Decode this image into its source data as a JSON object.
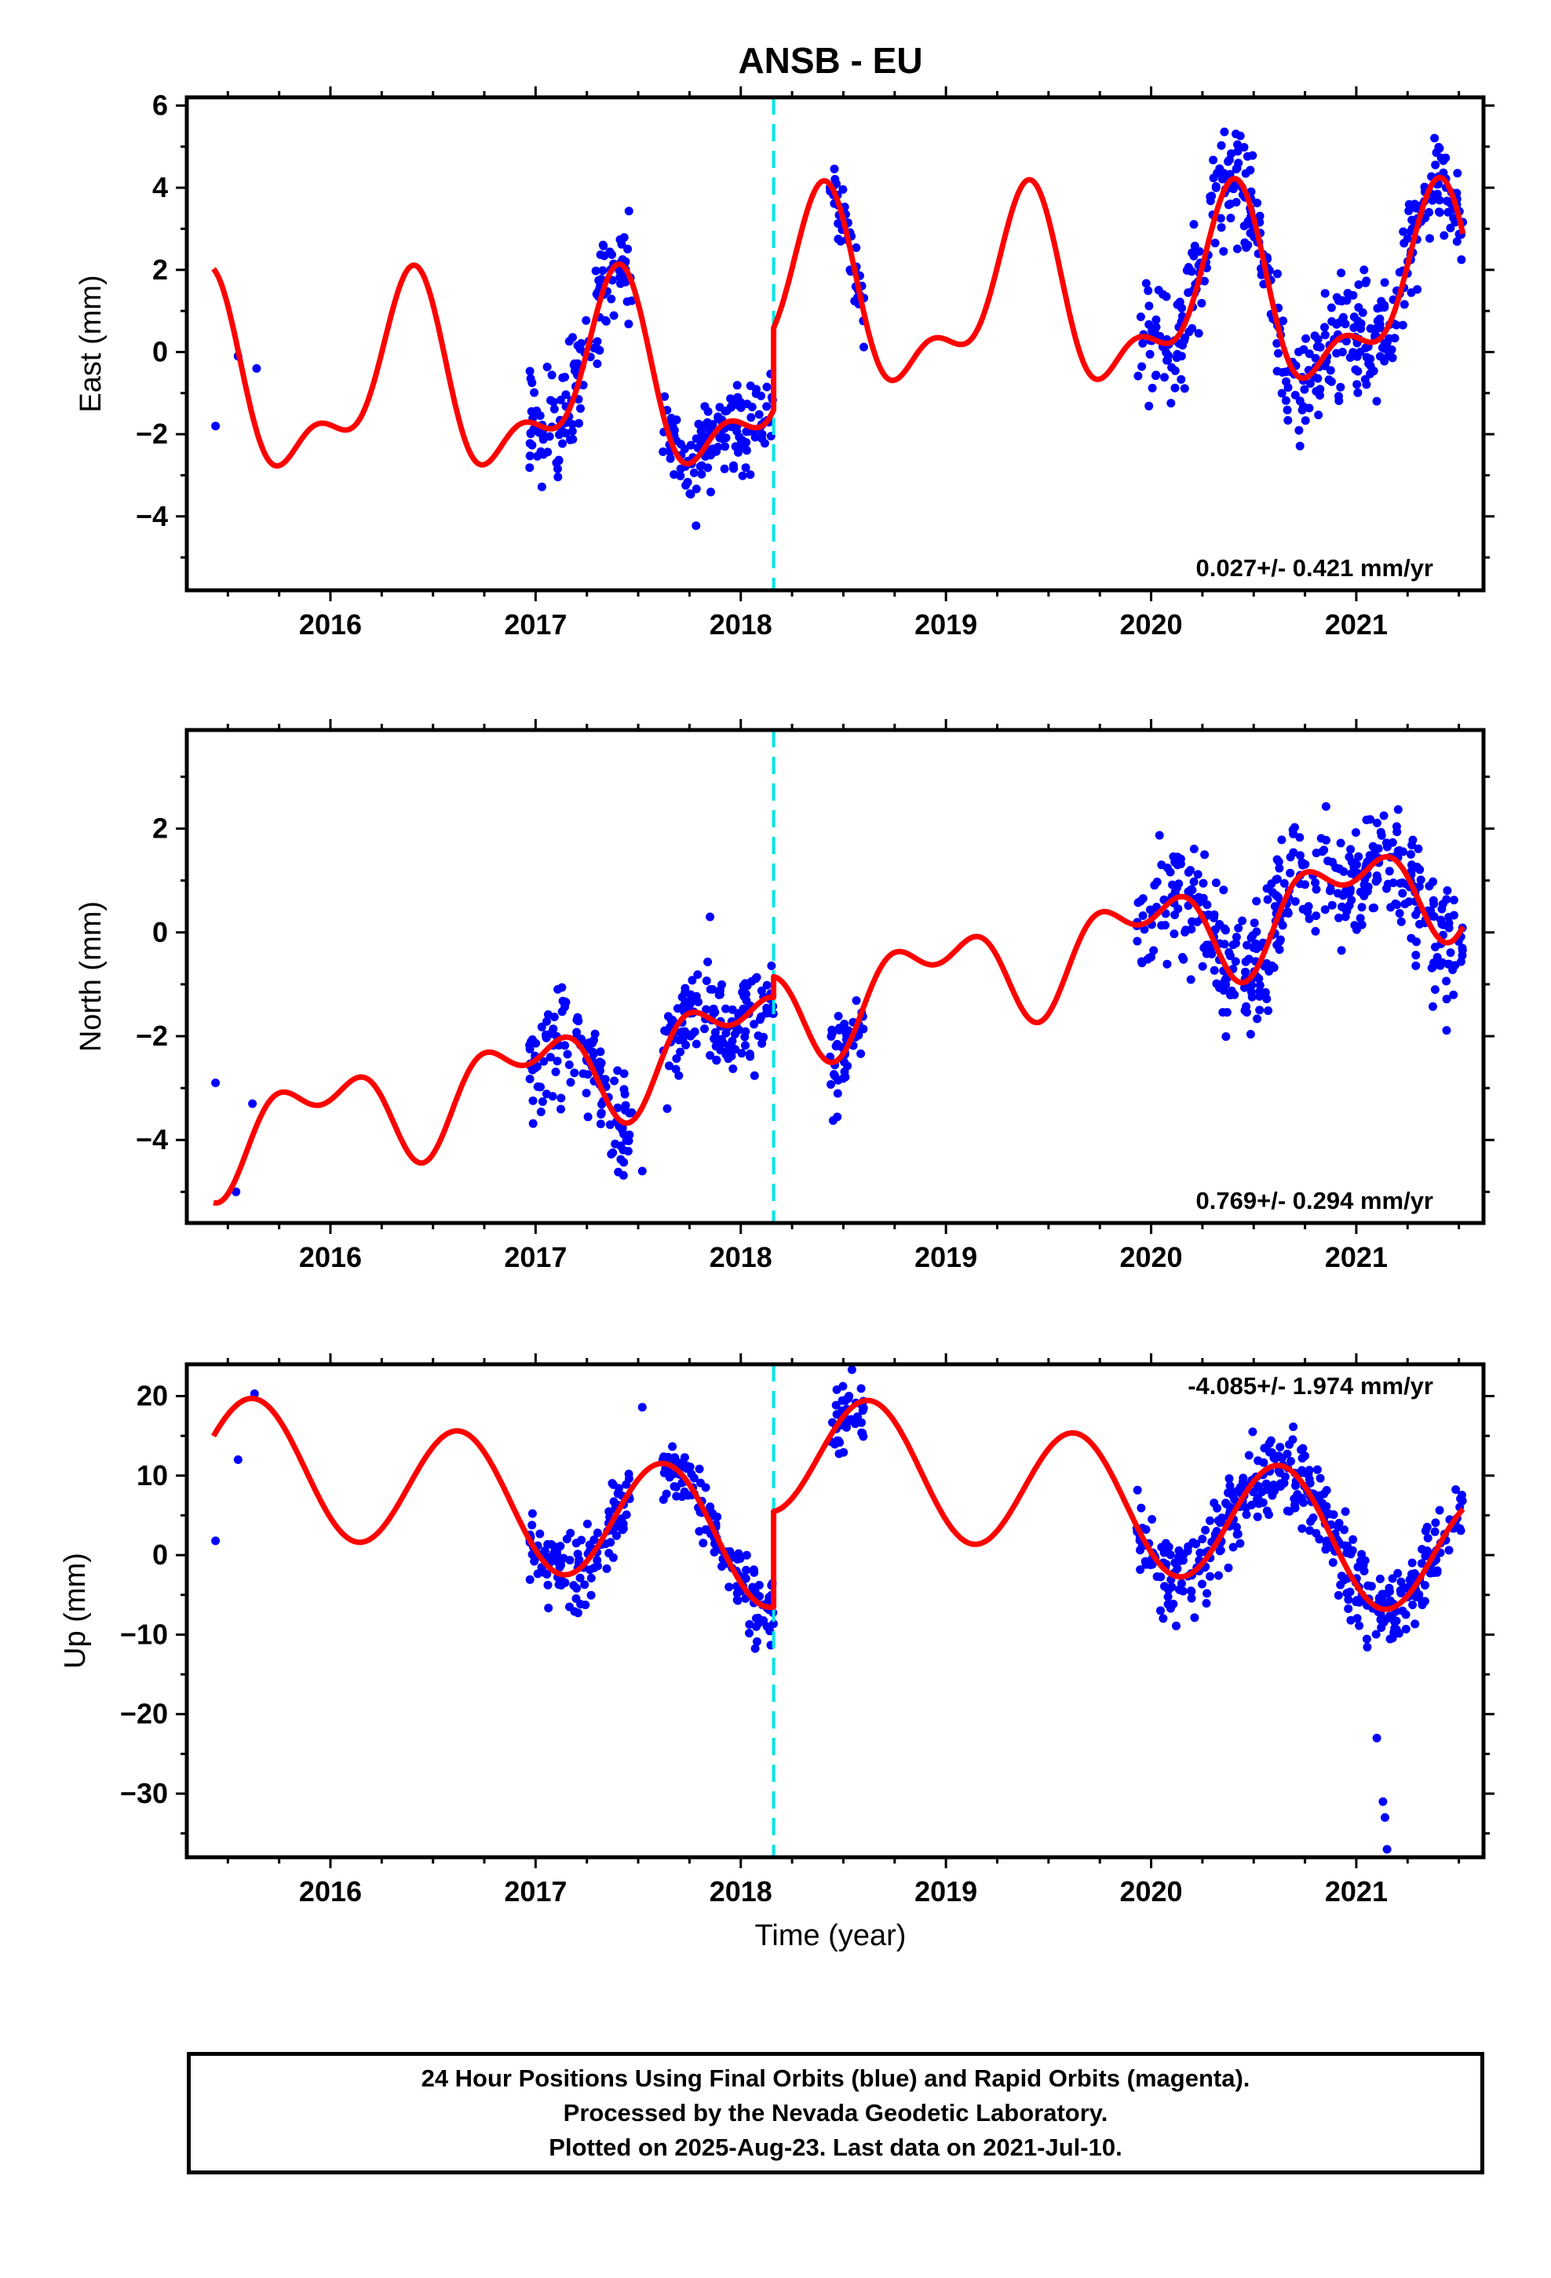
{
  "title": "ANSB - EU",
  "xlabel": "Time (year)",
  "colors": {
    "data": "#0000ff",
    "model": "#ff0000",
    "offset": "#00e5e5",
    "axis": "#000000"
  },
  "footer": {
    "line1": "24 Hour Positions Using Final Orbits (blue) and Rapid Orbits (magenta).",
    "line2": "Processed by the Nevada Geodetic Laboratory.",
    "line3": "Plotted on 2025-Aug-23. Last data on 2021-Jul-10."
  },
  "chart_data": [
    {
      "type": "scatter",
      "ylabel": "East (mm)",
      "xlim": [
        2015.3,
        2021.62
      ],
      "ylim": [
        -5.8,
        6.2
      ],
      "xticks": [
        2016,
        2017,
        2018,
        2019,
        2020,
        2021
      ],
      "yticks": [
        -4,
        -2,
        0,
        2,
        4,
        6
      ],
      "rate_label": "0.027+/- 0.421 mm/yr",
      "rate_position": "bottom-right",
      "offset_year": 2018.16,
      "model": {
        "segments": [
          {
            "x0": 2015.43,
            "x1": 2018.16,
            "offset": -0.8,
            "slope": 0.027,
            "amp1": 2.0,
            "phase1": 2016.38,
            "amp2": 1.0,
            "phase2": 2016.42,
            "t0": 2018.0
          },
          {
            "x0": 2018.16,
            "x1": 2021.52,
            "offset": 1.2,
            "slope": 0.027,
            "amp1": 2.0,
            "phase1": 2016.38,
            "amp2": 1.0,
            "phase2": 2016.42,
            "t0": 2018.0
          }
        ]
      },
      "observations": {
        "points": [
          [
            2015.44,
            -1.8
          ],
          [
            2015.55,
            -0.1
          ],
          [
            2015.64,
            -0.4
          ]
        ],
        "clusters": [
          {
            "x0": 2016.97,
            "x1": 2017.47,
            "spread": 1.2
          },
          {
            "x0": 2017.62,
            "x1": 2017.92,
            "spread": 0.9
          },
          {
            "x0": 2017.92,
            "x1": 2018.16,
            "spread": 1.1
          },
          {
            "x0": 2018.43,
            "x1": 2018.6,
            "spread": 0.8
          },
          {
            "x0": 2019.93,
            "x1": 2020.5,
            "spread": 1.3
          },
          {
            "x0": 2020.5,
            "x1": 2021.1,
            "spread": 1.1
          },
          {
            "x0": 2021.1,
            "x1": 2021.52,
            "spread": 1.1
          }
        ]
      }
    },
    {
      "type": "scatter",
      "ylabel": "North (mm)",
      "xlim": [
        2015.3,
        2021.62
      ],
      "ylim": [
        -5.6,
        3.9
      ],
      "xticks": [
        2016,
        2017,
        2018,
        2019,
        2020,
        2021
      ],
      "yticks": [
        -4,
        -2,
        0,
        2
      ],
      "rate_label": "0.769+/- 0.294 mm/yr",
      "rate_position": "bottom-right",
      "offset_year": 2018.16,
      "model": {
        "segments": [
          {
            "x0": 2015.43,
            "x1": 2018.16,
            "offset": -2.0,
            "slope": 0.769,
            "amp1": 0.75,
            "phase1": 2015.95,
            "amp2": 0.5,
            "phase2": 2016.2,
            "t0": 2018.0
          },
          {
            "x0": 2018.16,
            "x1": 2021.52,
            "offset": -1.6,
            "slope": 0.769,
            "amp1": 0.75,
            "phase1": 2015.95,
            "amp2": 0.5,
            "phase2": 2016.2,
            "t0": 2018.0
          }
        ]
      },
      "observations": {
        "points": [
          [
            2015.44,
            -2.9
          ],
          [
            2015.54,
            -5.0
          ],
          [
            2015.62,
            -3.3
          ],
          [
            2017.52,
            -4.6
          ],
          [
            2017.85,
            0.3
          ]
        ],
        "clusters": [
          {
            "x0": 2016.97,
            "x1": 2017.47,
            "spread": 0.9
          },
          {
            "x0": 2017.62,
            "x1": 2017.92,
            "spread": 0.8
          },
          {
            "x0": 2017.92,
            "x1": 2018.16,
            "spread": 0.7
          },
          {
            "x0": 2018.43,
            "x1": 2018.6,
            "spread": 0.7
          },
          {
            "x0": 2019.93,
            "x1": 2020.5,
            "spread": 1.0
          },
          {
            "x0": 2020.5,
            "x1": 2021.1,
            "spread": 1.0
          },
          {
            "x0": 2021.1,
            "x1": 2021.52,
            "spread": 1.1
          }
        ]
      }
    },
    {
      "type": "scatter",
      "ylabel": "Up (mm)",
      "xlim": [
        2015.3,
        2021.62
      ],
      "ylim": [
        -38,
        24
      ],
      "xticks": [
        2016,
        2017,
        2018,
        2019,
        2020,
        2021
      ],
      "yticks": [
        -30,
        -20,
        -10,
        0,
        10,
        20
      ],
      "rate_label": "-4.085+/- 1.974 mm/yr",
      "rate_position": "top-right",
      "offset_year": 2018.16,
      "model": {
        "segments": [
          {
            "x0": 2015.43,
            "x1": 2018.16,
            "offset": 2.0,
            "slope": -4.085,
            "amp1": 8.0,
            "phase1": 2015.63,
            "amp2": 0.0,
            "phase2": 2015.63,
            "t0": 2018.0
          },
          {
            "x0": 2018.16,
            "x1": 2021.52,
            "offset": 14.0,
            "slope": -4.085,
            "amp1": 8.0,
            "phase1": 2015.63,
            "amp2": 0.0,
            "phase2": 2015.63,
            "t0": 2018.0
          }
        ]
      },
      "observations": {
        "points": [
          [
            2015.44,
            1.8
          ],
          [
            2015.55,
            12.0
          ],
          [
            2015.63,
            20.3
          ],
          [
            2017.52,
            18.6
          ],
          [
            2017.62,
            12.0
          ],
          [
            2021.1,
            -23.0
          ],
          [
            2021.13,
            -31.0
          ],
          [
            2021.14,
            -33.0
          ],
          [
            2021.15,
            -37.0
          ]
        ],
        "clusters": [
          {
            "x0": 2016.97,
            "x1": 2017.47,
            "spread": 4.0
          },
          {
            "x0": 2017.62,
            "x1": 2017.92,
            "spread": 3.0
          },
          {
            "x0": 2017.92,
            "x1": 2018.16,
            "spread": 4.0
          },
          {
            "x0": 2018.43,
            "x1": 2018.6,
            "spread": 3.5
          },
          {
            "x0": 2019.93,
            "x1": 2020.5,
            "spread": 4.5
          },
          {
            "x0": 2020.5,
            "x1": 2021.1,
            "spread": 4.5
          },
          {
            "x0": 2021.1,
            "x1": 2021.52,
            "spread": 4.0
          }
        ]
      }
    }
  ]
}
